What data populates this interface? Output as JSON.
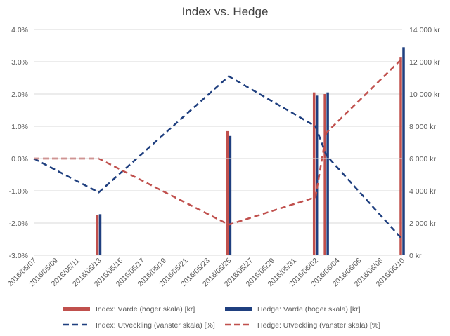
{
  "chart_data": {
    "type": "bar+line",
    "title": "Index vs. Hedge",
    "x_labels": [
      "2016/05/07",
      "2016/05/09",
      "2016/05/11",
      "2016/05/13",
      "2016/05/15",
      "2016/05/17",
      "2016/05/19",
      "2016/05/21",
      "2016/05/23",
      "2016/05/25",
      "2016/05/27",
      "2016/05/29",
      "2016/05/31",
      "2016/06/02",
      "2016/06/04",
      "2016/06/06",
      "2016/06/08",
      "2016/06/10"
    ],
    "x_range": [
      "2016/05/07",
      "2016/06/10"
    ],
    "y_left": {
      "range": [
        -3.0,
        4.0
      ],
      "ticks": [
        4.0,
        3.0,
        2.0,
        1.0,
        0.0,
        -1.0,
        -2.0,
        -3.0
      ],
      "tick_labels": [
        "4.0%",
        "3.0%",
        "2.0%",
        "1.0%",
        "0.0%",
        "-1.0%",
        "-2.0%",
        "-3.0%"
      ]
    },
    "y_right": {
      "range": [
        0,
        14000
      ],
      "ticks": [
        14000,
        12000,
        10000,
        8000,
        6000,
        4000,
        2000,
        0
      ],
      "tick_labels": [
        "14 000 kr",
        "12 000 kr",
        "10 000 kr",
        "8 000 kr",
        "6 000 kr",
        "4 000 kr",
        "2 000 kr",
        "0 kr"
      ]
    },
    "grid": true,
    "legend_position": "bottom",
    "bar_series": [
      {
        "name": "Index: Värde (höger skala) [kr]",
        "color": "#c0504d",
        "axis": "right",
        "points": [
          {
            "date": "2016/05/13",
            "value": 2500
          },
          {
            "date": "2016/05/25",
            "value": 7700
          },
          {
            "date": "2016/06/02",
            "value": 10100
          },
          {
            "date": "2016/06/03",
            "value": 10000
          },
          {
            "date": "2016/06/10",
            "value": 12300
          }
        ]
      },
      {
        "name": "Hedge: Värde (höger skala) [kr]",
        "color": "#1f3f7f",
        "axis": "right",
        "points": [
          {
            "date": "2016/05/13",
            "value": 2550
          },
          {
            "date": "2016/05/25",
            "value": 7400
          },
          {
            "date": "2016/06/02",
            "value": 9900
          },
          {
            "date": "2016/06/03",
            "value": 10100
          },
          {
            "date": "2016/06/10",
            "value": 12900
          }
        ]
      }
    ],
    "line_series": [
      {
        "name": "Index: Utveckling (vänster skala) [%]",
        "color": "#1f3f7f",
        "axis": "left",
        "points": [
          {
            "date": "2016/05/07",
            "value": 0.0
          },
          {
            "date": "2016/05/13",
            "value": -1.05
          },
          {
            "date": "2016/05/25",
            "value": 2.55
          },
          {
            "date": "2016/06/02",
            "value": 1.0
          },
          {
            "date": "2016/06/03",
            "value": 0.1
          },
          {
            "date": "2016/06/10",
            "value": -2.5
          }
        ]
      },
      {
        "name": "Hedge: Utveckling (vänster skala) [%]",
        "color": "#c0504d",
        "axis": "left",
        "points": [
          {
            "date": "2016/05/07",
            "value": 0.0
          },
          {
            "date": "2016/05/13",
            "value": 0.0
          },
          {
            "date": "2016/05/25",
            "value": -2.05
          },
          {
            "date": "2016/06/02",
            "value": -1.2
          },
          {
            "date": "2016/06/03",
            "value": 0.8
          },
          {
            "date": "2016/06/10",
            "value": 3.1
          }
        ]
      }
    ]
  }
}
